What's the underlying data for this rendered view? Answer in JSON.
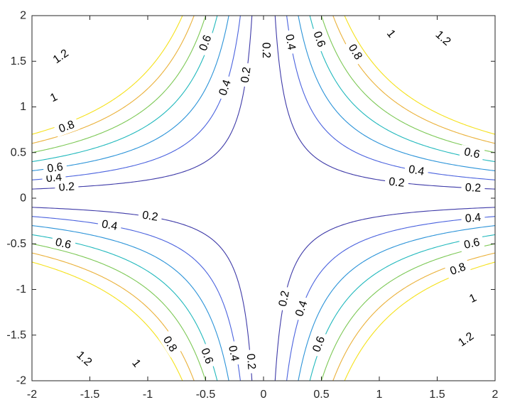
{
  "chart_data": {
    "type": "contour",
    "title": "",
    "xlabel": "",
    "ylabel": "",
    "function": "|x*y|",
    "xlim": [
      -2,
      2
    ],
    "ylim": [
      -2,
      2
    ],
    "x_ticks": [
      "-2",
      "-1.5",
      "-1",
      "-0.5",
      "0",
      "0.5",
      "1",
      "1.5",
      "2"
    ],
    "y_ticks": [
      "2",
      "1.5",
      "1",
      "0.5",
      "0",
      "-0.5",
      "-1",
      "-1.5",
      "-2"
    ],
    "grid": false,
    "legend": "none",
    "levels": [
      {
        "value": 0.2,
        "label": "0.2",
        "color": "#3e3aa8"
      },
      {
        "value": 0.4,
        "label": "0.4",
        "color": "#4a62de"
      },
      {
        "value": 0.6,
        "label": "0.6",
        "color": "#2b93d8"
      },
      {
        "value": 0.8,
        "label": "0.8",
        "color": "#20b8bc"
      },
      {
        "value": 1.0,
        "label": "1",
        "color": "#7cc855"
      },
      {
        "value": 1.2,
        "label": "1.2",
        "color": "#eab13a"
      },
      {
        "value": 1.4,
        "label": "",
        "color": "#f5e11b"
      }
    ],
    "labels": [
      {
        "text": "0.2",
        "x": -1.7,
        "y": 0.12
      },
      {
        "text": "0.2",
        "x": -0.98,
        "y": -0.2
      },
      {
        "text": "0.2",
        "x": 1.15,
        "y": 0.17
      },
      {
        "text": "0.2",
        "x": 1.81,
        "y": 0.11
      },
      {
        "text": "0.2",
        "x": -0.15,
        "y": 1.35
      },
      {
        "text": "0.2",
        "x": 0.02,
        "y": 1.62
      },
      {
        "text": "0.2",
        "x": 0.18,
        "y": -1.1
      },
      {
        "text": "0.2",
        "x": -0.11,
        "y": -1.79
      },
      {
        "text": "0.4",
        "x": -1.81,
        "y": 0.22
      },
      {
        "text": "0.4",
        "x": -1.33,
        "y": -0.3
      },
      {
        "text": "0.4",
        "x": 1.32,
        "y": 0.3
      },
      {
        "text": "0.4",
        "x": 1.81,
        "y": -0.22
      },
      {
        "text": "0.4",
        "x": -0.33,
        "y": 1.21
      },
      {
        "text": "0.4",
        "x": 0.23,
        "y": 1.71
      },
      {
        "text": "0.4",
        "x": 0.33,
        "y": -1.21
      },
      {
        "text": "0.4",
        "x": -0.26,
        "y": -1.7
      },
      {
        "text": "0.6",
        "x": -1.8,
        "y": 0.33
      },
      {
        "text": "0.6",
        "x": -1.73,
        "y": -0.5
      },
      {
        "text": "0.6",
        "x": 1.8,
        "y": 0.49
      },
      {
        "text": "0.6",
        "x": 1.8,
        "y": -0.5
      },
      {
        "text": "0.6",
        "x": -0.5,
        "y": 1.7
      },
      {
        "text": "0.6",
        "x": 0.48,
        "y": 1.74
      },
      {
        "text": "0.6",
        "x": 0.48,
        "y": -1.6
      },
      {
        "text": "0.6",
        "x": -0.49,
        "y": -1.73
      },
      {
        "text": "0.8",
        "x": -1.7,
        "y": 0.78
      },
      {
        "text": "0.8",
        "x": 0.79,
        "y": 1.6
      },
      {
        "text": "0.8",
        "x": 1.68,
        "y": -0.78
      },
      {
        "text": "0.8",
        "x": -0.81,
        "y": -1.6
      },
      {
        "text": "1",
        "x": -1.81,
        "y": 1.1
      },
      {
        "text": "1",
        "x": 1.1,
        "y": 1.8
      },
      {
        "text": "1",
        "x": 1.81,
        "y": -1.1
      },
      {
        "text": "1",
        "x": -1.1,
        "y": -1.81
      },
      {
        "text": "1.2",
        "x": -1.75,
        "y": 1.55
      },
      {
        "text": "1.2",
        "x": 1.55,
        "y": 1.75
      },
      {
        "text": "1.2",
        "x": 1.75,
        "y": -1.55
      },
      {
        "text": "1.2",
        "x": -1.55,
        "y": -1.76
      }
    ]
  }
}
